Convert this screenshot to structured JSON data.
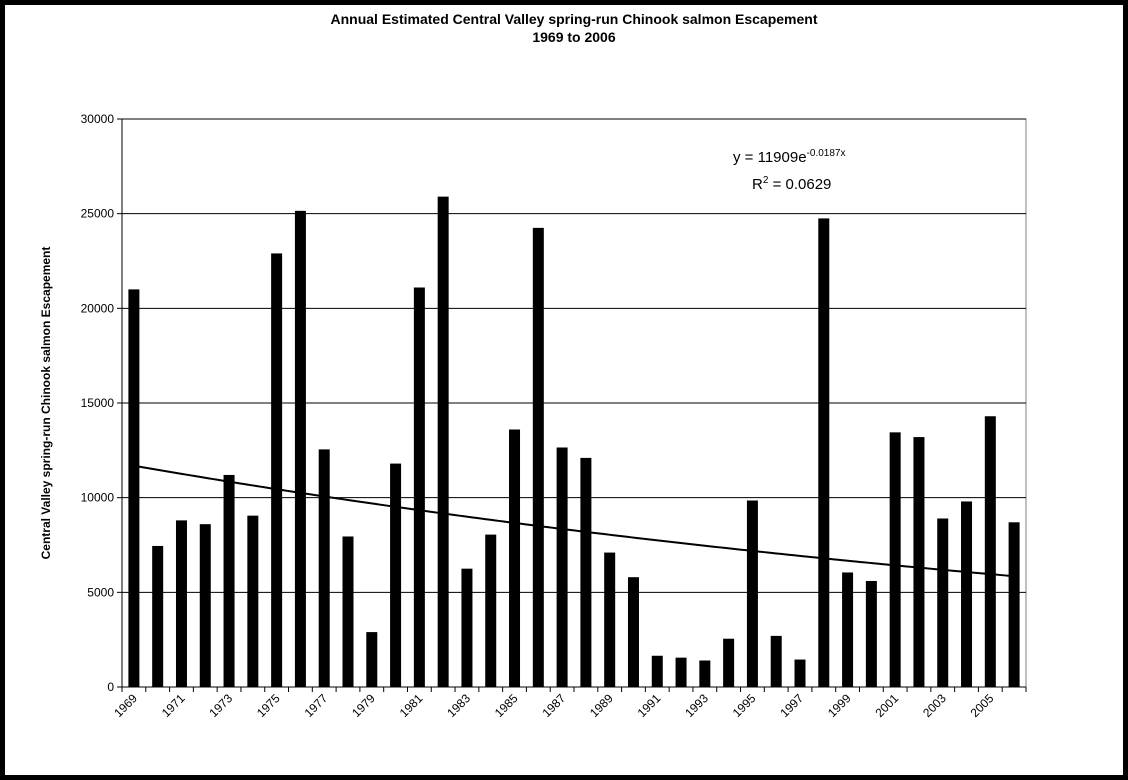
{
  "chart_data": {
    "type": "bar",
    "title": "Annual Estimated Central Valley spring-run Chinook salmon Escapement",
    "subtitle": "1969 to 2006",
    "y_label": "Central Valley spring-run Chinook salmon Escapement",
    "categories": [
      "1969",
      null,
      "1971",
      null,
      "1973",
      null,
      "1975",
      null,
      "1977",
      null,
      "1979",
      null,
      "1981",
      null,
      "1983",
      null,
      "1985",
      null,
      "1987",
      null,
      "1989",
      null,
      "1991",
      null,
      "1993",
      null,
      "1995",
      null,
      "1997",
      null,
      "1999",
      null,
      "2001",
      null,
      "2003",
      null,
      "2005",
      null
    ],
    "values": [
      21000,
      7450,
      8800,
      8600,
      11200,
      9050,
      22900,
      25150,
      12550,
      7950,
      2900,
      11800,
      21100,
      25900,
      6250,
      8050,
      13600,
      24250,
      12650,
      12100,
      7100,
      5800,
      1650,
      1550,
      1400,
      2550,
      9850,
      2700,
      1450,
      24750,
      6050,
      5600,
      13450,
      13200,
      8900,
      9800,
      14300,
      8700
    ],
    "color": "#000000",
    "ylim": [
      0,
      30000
    ],
    "yticks": [
      0,
      5000,
      10000,
      15000,
      20000,
      25000,
      30000
    ],
    "grid": true,
    "trendline": {
      "coefficient": 11909,
      "exponent": -0.0187,
      "equation_text": "y = 11909e",
      "equation_superscript": "-0.0187x",
      "r_squared_text": "R",
      "r_squared_superscript": "2",
      "r_squared_value": " = 0.0629"
    }
  }
}
